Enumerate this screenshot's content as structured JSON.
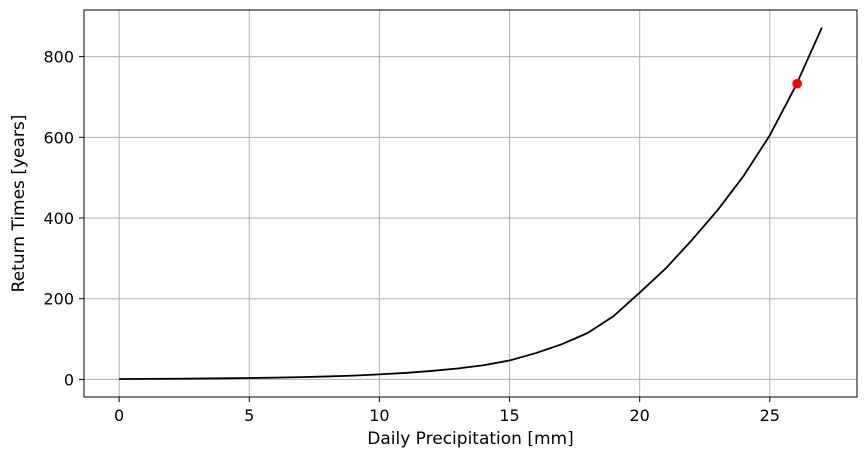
{
  "chart_data": {
    "type": "line",
    "title": "",
    "xlabel": "Daily Precipitation [mm]",
    "ylabel": "Return Times [years]",
    "xlim": [
      -1.35,
      28.35
    ],
    "ylim": [
      -43.6,
      915.6
    ],
    "xticks": [
      0,
      5,
      10,
      15,
      20,
      25
    ],
    "yticks": [
      0,
      200,
      400,
      600,
      800
    ],
    "grid": true,
    "line_color": "#000000",
    "marker_color": "#ff0000",
    "series": [
      {
        "x": [
          0,
          1,
          2,
          3,
          4,
          5,
          6,
          7,
          8,
          9,
          10,
          11,
          12,
          13,
          14,
          15,
          16,
          17,
          18,
          19,
          20,
          21,
          22,
          23,
          24,
          25,
          26,
          27
        ],
        "y": [
          1,
          1.28,
          1.64,
          2.1,
          2.7,
          3.46,
          4.44,
          5.7,
          7.31,
          9.4,
          12.5,
          16,
          21,
          27,
          35,
          47,
          65,
          87,
          115,
          157,
          215,
          275,
          345,
          420,
          505,
          605,
          728,
          872
        ]
      },
      {
        "x": [
          26.05
        ],
        "y": [
          733
        ]
      }
    ]
  }
}
